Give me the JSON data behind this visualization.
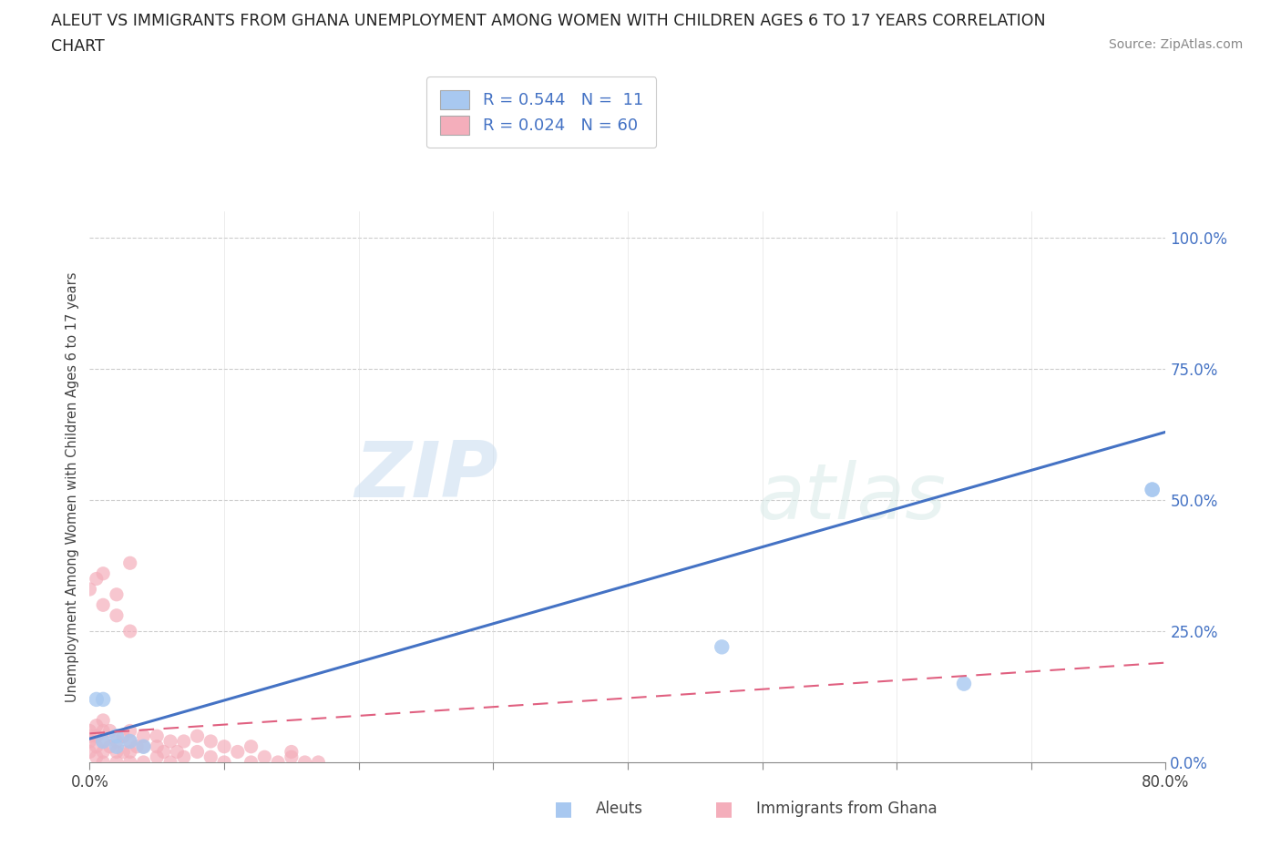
{
  "title_line1": "ALEUT VS IMMIGRANTS FROM GHANA UNEMPLOYMENT AMONG WOMEN WITH CHILDREN AGES 6 TO 17 YEARS CORRELATION",
  "title_line2": "CHART",
  "source_text": "Source: ZipAtlas.com",
  "ylabel": "Unemployment Among Women with Children Ages 6 to 17 years",
  "watermark_zip": "ZIP",
  "watermark_atlas": "atlas",
  "xlim": [
    0.0,
    0.8
  ],
  "ylim": [
    0.0,
    1.05
  ],
  "aleut_color": "#A8C8F0",
  "aleut_line_color": "#4472C4",
  "ghana_color": "#F4AEBB",
  "ghana_line_color": "#E06080",
  "background_color": "#FFFFFF",
  "legend_R1": "R = 0.544",
  "legend_N1": "N =  11",
  "legend_R2": "R = 0.024",
  "legend_N2": "N = 60",
  "aleut_x": [
    0.005,
    0.01,
    0.01,
    0.02,
    0.02,
    0.03,
    0.04,
    0.47,
    0.65,
    0.79,
    0.79
  ],
  "aleut_y": [
    0.12,
    0.12,
    0.04,
    0.05,
    0.03,
    0.04,
    0.03,
    0.22,
    0.15,
    0.52,
    0.52
  ],
  "ghana_x": [
    0.0,
    0.0,
    0.0,
    0.0,
    0.005,
    0.005,
    0.005,
    0.005,
    0.01,
    0.01,
    0.01,
    0.01,
    0.01,
    0.015,
    0.015,
    0.02,
    0.02,
    0.02,
    0.025,
    0.025,
    0.03,
    0.03,
    0.03,
    0.03,
    0.035,
    0.04,
    0.04,
    0.04,
    0.05,
    0.05,
    0.05,
    0.055,
    0.06,
    0.06,
    0.065,
    0.07,
    0.07,
    0.08,
    0.08,
    0.09,
    0.09,
    0.1,
    0.1,
    0.11,
    0.12,
    0.12,
    0.13,
    0.14,
    0.15,
    0.16,
    0.0,
    0.005,
    0.01,
    0.01,
    0.02,
    0.02,
    0.03,
    0.03,
    0.15,
    0.17
  ],
  "ghana_y": [
    0.02,
    0.04,
    0.05,
    0.06,
    0.01,
    0.03,
    0.05,
    0.07,
    0.0,
    0.02,
    0.04,
    0.06,
    0.08,
    0.03,
    0.06,
    0.0,
    0.02,
    0.04,
    0.02,
    0.05,
    0.0,
    0.02,
    0.04,
    0.06,
    0.03,
    0.0,
    0.03,
    0.05,
    0.01,
    0.03,
    0.05,
    0.02,
    0.0,
    0.04,
    0.02,
    0.01,
    0.04,
    0.02,
    0.05,
    0.01,
    0.04,
    0.0,
    0.03,
    0.02,
    0.0,
    0.03,
    0.01,
    0.0,
    0.01,
    0.0,
    0.33,
    0.35,
    0.3,
    0.36,
    0.28,
    0.32,
    0.25,
    0.38,
    0.02,
    0.0
  ],
  "aleut_trend_x": [
    0.0,
    0.8
  ],
  "aleut_trend_y": [
    0.045,
    0.63
  ],
  "ghana_trend_x": [
    0.0,
    0.8
  ],
  "ghana_trend_y": [
    0.055,
    0.19
  ]
}
